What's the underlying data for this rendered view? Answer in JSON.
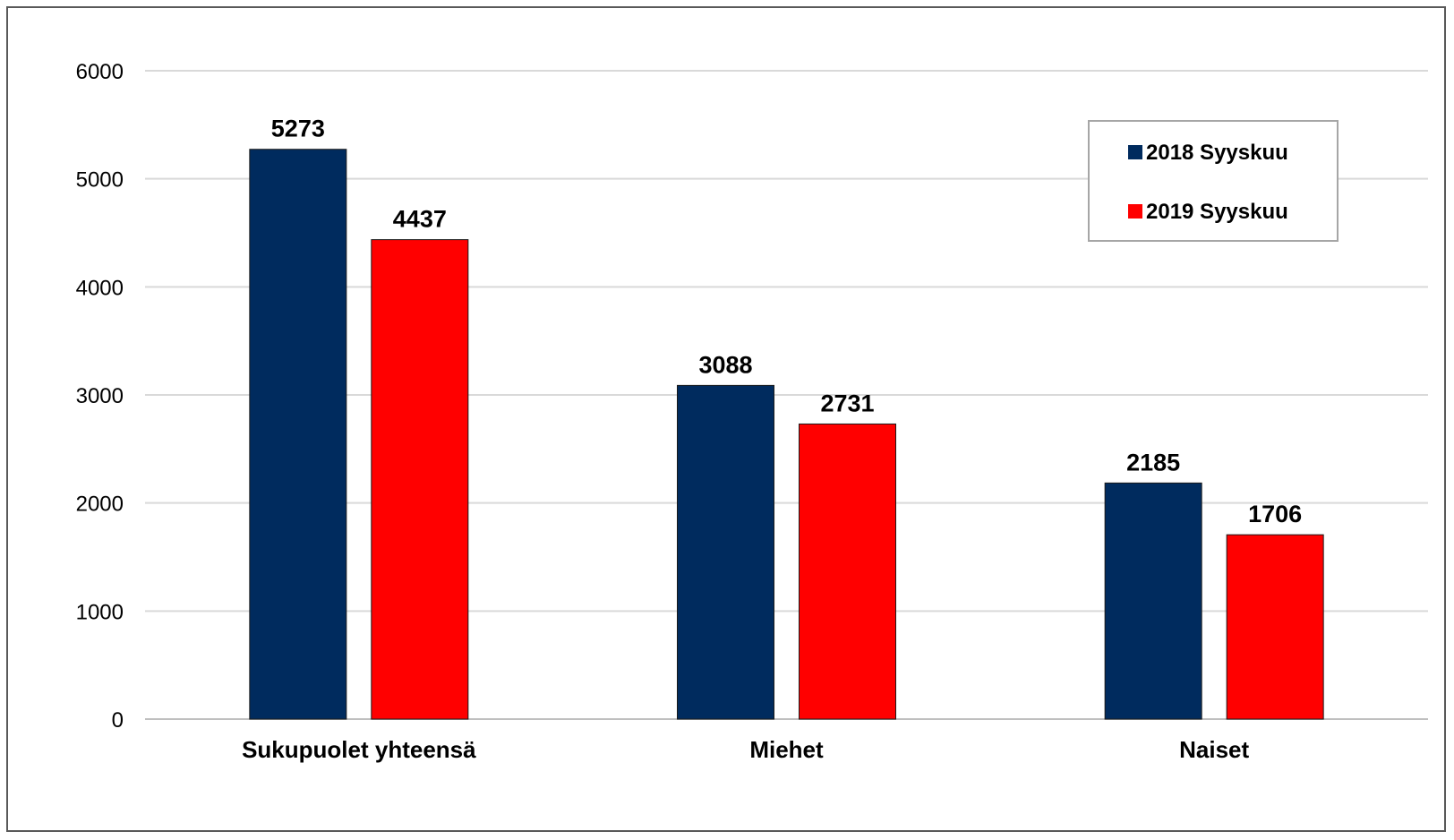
{
  "chart_data": {
    "type": "bar",
    "title": "",
    "xlabel": "",
    "ylabel": "",
    "categories": [
      "Sukupuolet yhteensä",
      "Miehet",
      "Naiset"
    ],
    "series": [
      {
        "name": "2018 Syyskuu",
        "values": [
          5273,
          3088,
          2185
        ],
        "color": "#002B5E"
      },
      {
        "name": "2019 Syyskuu",
        "values": [
          4437,
          2731,
          1706
        ],
        "color": "#FF0000"
      }
    ],
    "ylim": [
      0,
      6000
    ],
    "yticks": [
      0,
      1000,
      2000,
      3000,
      4000,
      5000,
      6000
    ],
    "grid": true,
    "legend_position": "top-right",
    "data_labels": true
  }
}
